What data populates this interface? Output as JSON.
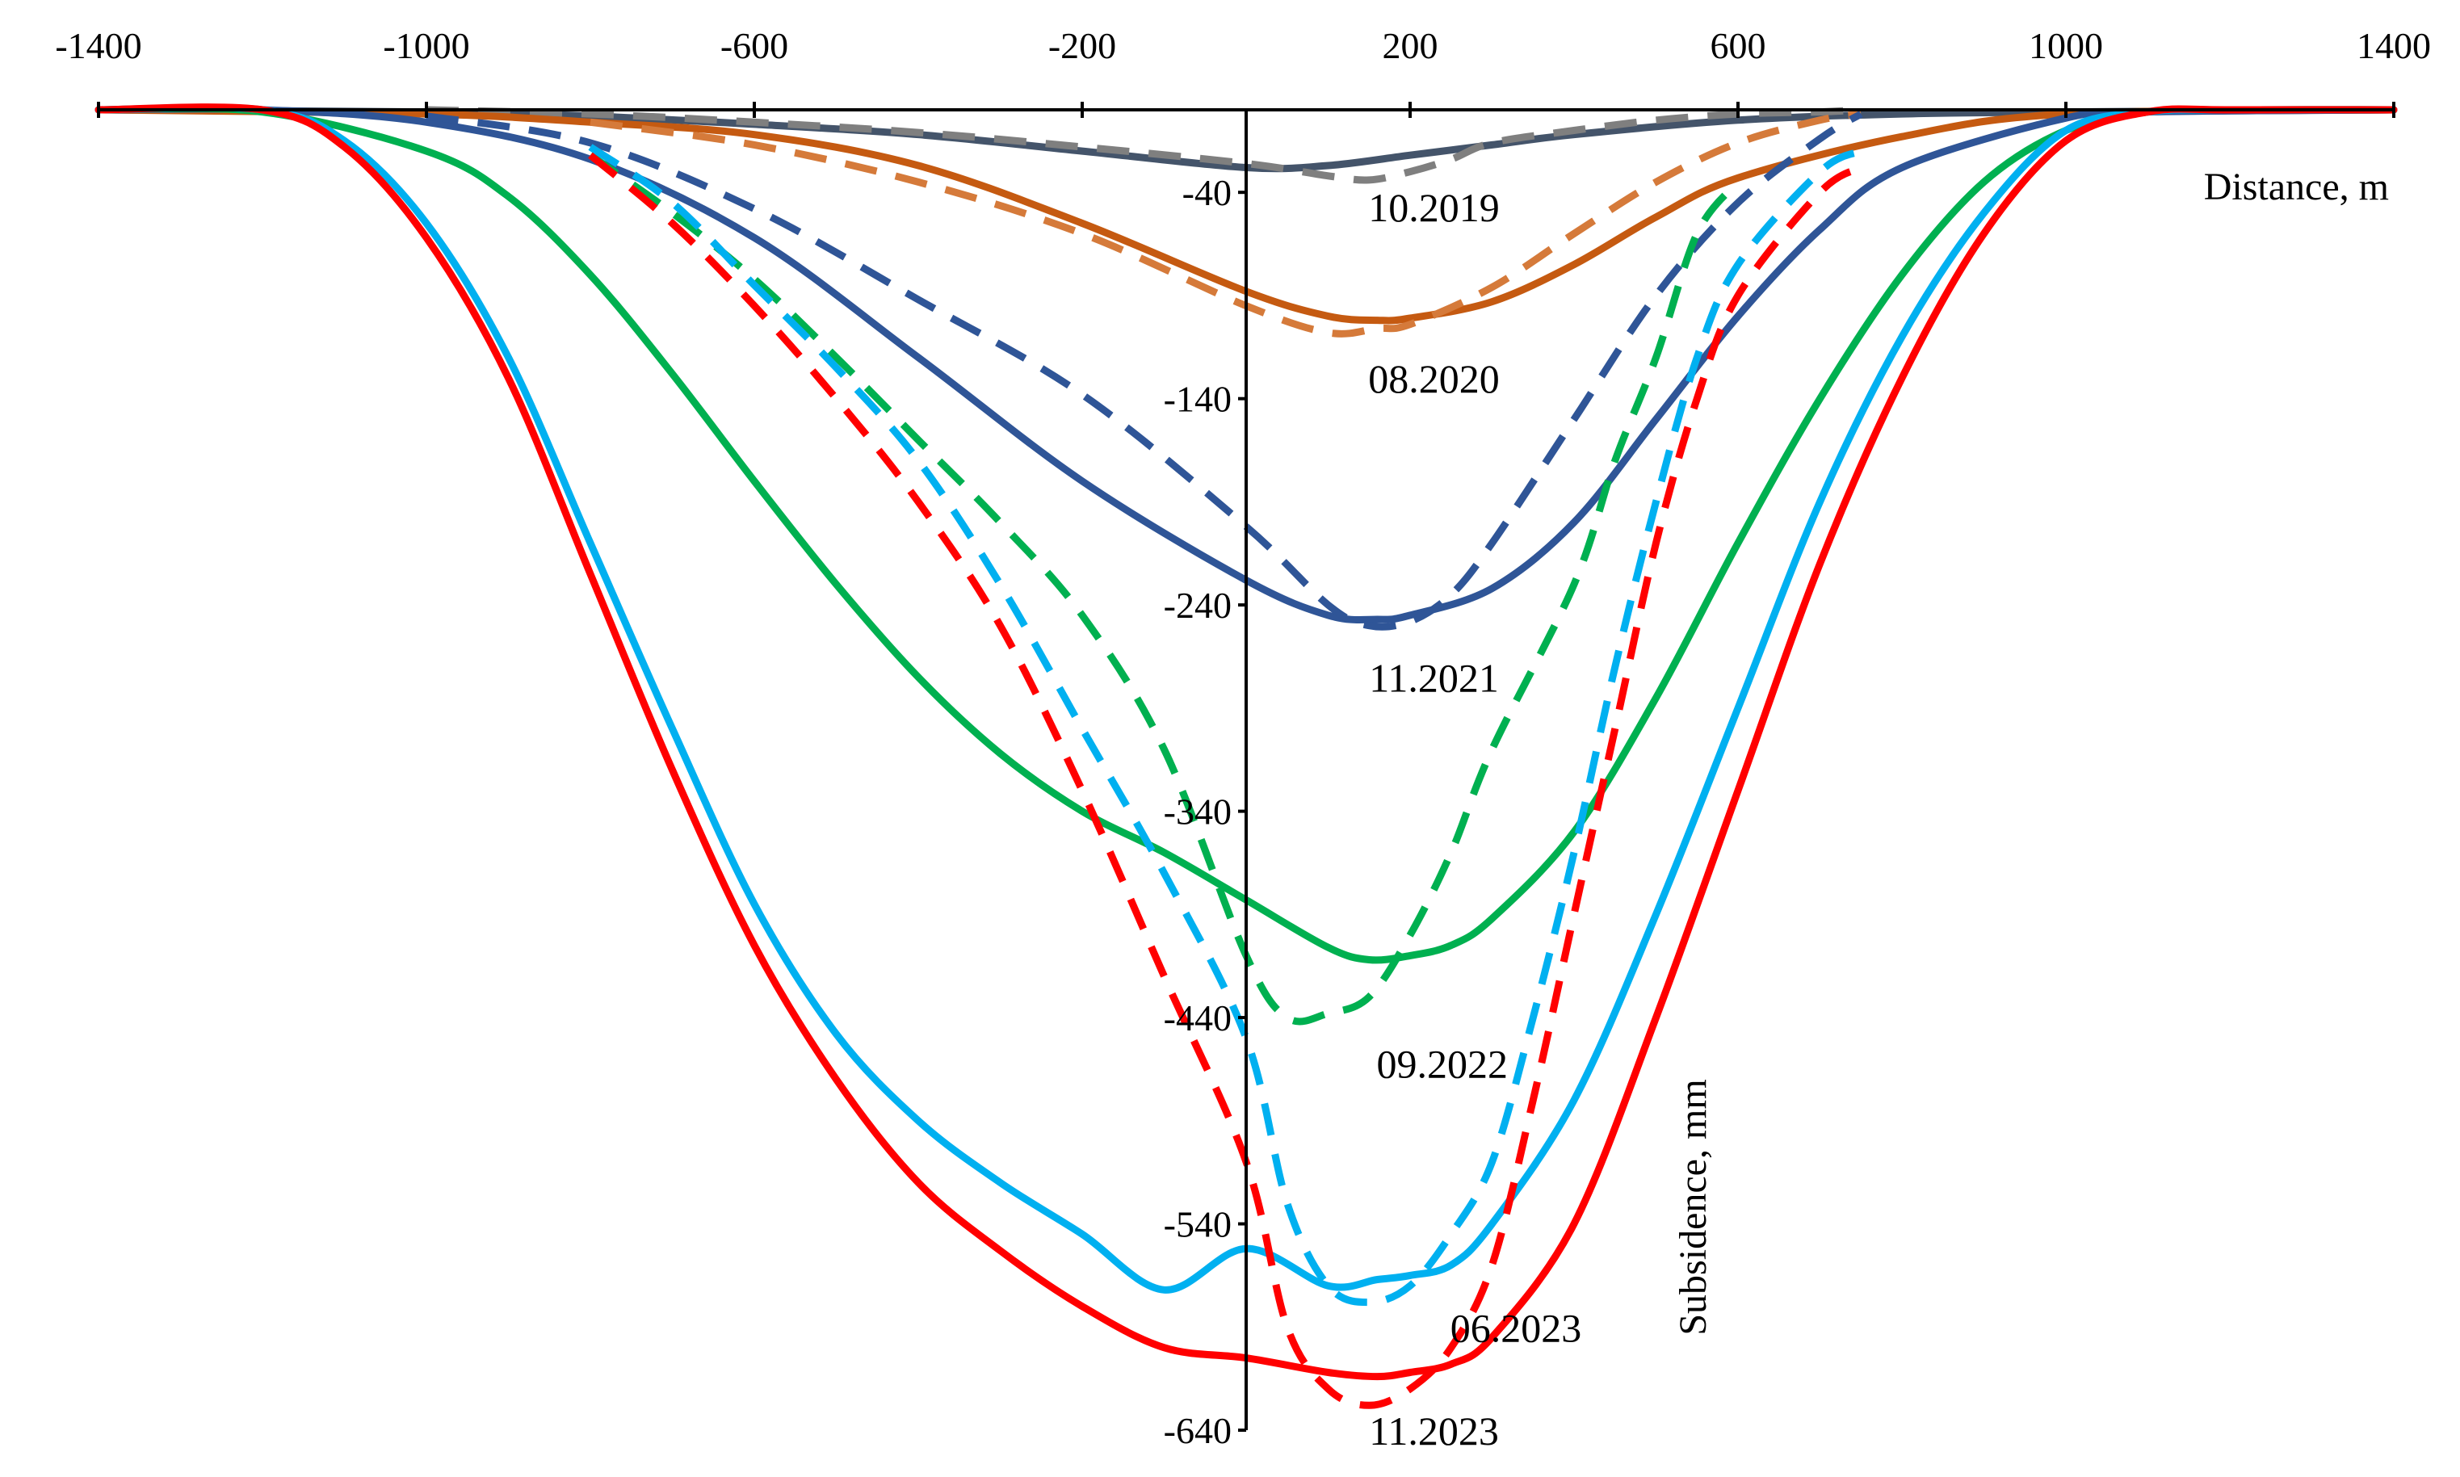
{
  "chart_data": {
    "type": "line",
    "title": "",
    "xlabel": "Distance, m",
    "ylabel": "Subsidence, mm",
    "xlim": [
      -1400,
      1400
    ],
    "ylim": [
      -640,
      0
    ],
    "x_ticks": [
      -1400,
      -1000,
      -600,
      -200,
      200,
      600,
      1000,
      1400
    ],
    "x_tick_labels": [
      "-1400",
      "-1000",
      "-600",
      "-200",
      "200",
      "600",
      "1000",
      "1400"
    ],
    "y_ticks": [
      -40,
      -140,
      -240,
      -340,
      -440,
      -540,
      -640
    ],
    "y_tick_labels": [
      "-40",
      "-140",
      "-240",
      "-340",
      "-440",
      "-540",
      "-640"
    ],
    "grid": false,
    "legend": "none",
    "colors": {
      "2019": "#44546A",
      "2019_dashed": "#7F7F7F",
      "2020": "#C55A11",
      "2020_dashed": "#D57A3A",
      "2021": "#2F5597",
      "2022": "#00B050",
      "2023_06": "#00B0F0",
      "2023_11": "#FF0000"
    },
    "annotations": [
      {
        "text": "10.2019",
        "x": 170,
        "y": -47
      },
      {
        "text": "08.2020",
        "x": 170,
        "y": -130
      },
      {
        "text": "11.2021",
        "x": 170,
        "y": -275
      },
      {
        "text": "09.2022",
        "x": 180,
        "y": -462
      },
      {
        "text": "06.2023",
        "x": 270,
        "y": -590
      },
      {
        "text": "11.2023",
        "x": 170,
        "y": -640
      }
    ],
    "series": [
      {
        "name": "10.2019",
        "style": "solid",
        "color": "#44546A",
        "x": [
          -1400,
          -1000,
          -800,
          -600,
          -400,
          -200,
          0,
          100,
          200,
          300,
          400,
          600,
          800,
          1000,
          1400
        ],
        "y": [
          0,
          -1,
          -3,
          -7,
          -12,
          -20,
          -28,
          -27,
          -22,
          -17,
          -12,
          -5,
          -2,
          -1,
          0
        ]
      },
      {
        "name": "10.2019 dashed",
        "style": "dashed",
        "color": "#7F7F7F",
        "x": [
          -1000,
          -800,
          -600,
          -400,
          -200,
          0,
          100,
          150,
          200,
          250,
          300,
          400,
          500,
          600,
          700,
          750
        ],
        "y": [
          0,
          -2,
          -6,
          -11,
          -18,
          -26,
          -32,
          -34,
          -30,
          -24,
          -16,
          -10,
          -5,
          -2,
          -1,
          0
        ]
      },
      {
        "name": "08.2020",
        "style": "solid",
        "color": "#C55A11",
        "x": [
          -1400,
          -1000,
          -800,
          -600,
          -400,
          -200,
          0,
          100,
          160,
          200,
          300,
          400,
          500,
          600,
          800,
          1000,
          1400
        ],
        "y": [
          0,
          -2,
          -6,
          -12,
          -27,
          -55,
          -88,
          -100,
          -102,
          -101,
          -93,
          -75,
          -52,
          -33,
          -13,
          -2,
          0
        ]
      },
      {
        "name": "08.2020 dashed",
        "style": "dashed",
        "color": "#D57A3A",
        "x": [
          -800,
          -600,
          -400,
          -200,
          0,
          100,
          160,
          200,
          300,
          400,
          500,
          600,
          700,
          750
        ],
        "y": [
          -6,
          -17,
          -35,
          -60,
          -95,
          -108,
          -106,
          -104,
          -86,
          -60,
          -35,
          -16,
          -5,
          -2
        ]
      },
      {
        "name": "11.2021",
        "style": "solid",
        "color": "#2F5597",
        "x": [
          -1400,
          -1200,
          -1000,
          -800,
          -600,
          -400,
          -200,
          0,
          100,
          160,
          200,
          300,
          400,
          500,
          600,
          700,
          800,
          1000,
          1100,
          1400
        ],
        "y": [
          0,
          0,
          -6,
          -24,
          -62,
          -120,
          -180,
          -228,
          -245,
          -247,
          -245,
          -232,
          -200,
          -150,
          -100,
          -58,
          -28,
          -4,
          -1,
          0
        ]
      },
      {
        "name": "11.2021 dashed",
        "style": "dashed",
        "color": "#2F5597",
        "x": [
          -1000,
          -800,
          -600,
          -400,
          -200,
          0,
          100,
          150,
          200,
          250,
          300,
          400,
          500,
          600,
          700,
          750
        ],
        "y": [
          -3,
          -16,
          -48,
          -92,
          -138,
          -202,
          -240,
          -250,
          -248,
          -235,
          -210,
          -150,
          -90,
          -45,
          -14,
          -2
        ]
      },
      {
        "name": "09.2022",
        "style": "solid",
        "color": "#00B050",
        "x": [
          -1400,
          -1200,
          -1000,
          -900,
          -800,
          -700,
          -600,
          -500,
          -400,
          -300,
          -200,
          -100,
          0,
          100,
          150,
          200,
          250,
          300,
          400,
          500,
          600,
          700,
          800,
          900,
          1000,
          1100,
          1200,
          1400
        ],
        "y": [
          0,
          -1,
          -20,
          -42,
          -80,
          -128,
          -180,
          -230,
          -275,
          -312,
          -340,
          -360,
          -383,
          -406,
          -412,
          -410,
          -405,
          -392,
          -350,
          -285,
          -210,
          -140,
          -80,
          -35,
          -10,
          -1,
          0,
          0
        ]
      },
      {
        "name": "09.2022 dashed",
        "style": "dashed",
        "color": "#00B050",
        "x": [
          -800,
          -700,
          -600,
          -500,
          -400,
          -300,
          -200,
          -100,
          0,
          50,
          100,
          150,
          200,
          250,
          300,
          400,
          450,
          500,
          550,
          600
        ],
        "y": [
          -22,
          -50,
          -82,
          -120,
          -160,
          -200,
          -245,
          -310,
          -410,
          -440,
          -438,
          -430,
          -400,
          -360,
          -310,
          -230,
          -170,
          -120,
          -60,
          -35
        ]
      },
      {
        "name": "06.2023",
        "style": "solid",
        "color": "#00B0F0",
        "x": [
          -1400,
          -1200,
          -1100,
          -1000,
          -900,
          -800,
          -700,
          -600,
          -500,
          -400,
          -300,
          -200,
          -100,
          0,
          100,
          160,
          200,
          250,
          300,
          400,
          500,
          600,
          700,
          800,
          900,
          1000,
          1100,
          1200,
          1400
        ],
        "y": [
          0,
          0,
          -15,
          -55,
          -120,
          -210,
          -300,
          -385,
          -448,
          -490,
          -520,
          -545,
          -572,
          -552,
          -570,
          -567,
          -565,
          -560,
          -540,
          -480,
          -390,
          -290,
          -190,
          -110,
          -50,
          -10,
          -1,
          0,
          0
        ]
      },
      {
        "name": "06.2023 dashed",
        "style": "dashed",
        "color": "#00B0F0",
        "x": [
          -800,
          -700,
          -600,
          -500,
          -400,
          -300,
          -200,
          -100,
          0,
          50,
          100,
          150,
          200,
          250,
          300,
          350,
          400,
          450,
          500,
          550,
          600,
          700,
          750
        ],
        "y": [
          -18,
          -45,
          -85,
          -125,
          -170,
          -230,
          -300,
          -370,
          -450,
          -530,
          -570,
          -578,
          -570,
          -545,
          -510,
          -440,
          -360,
          -270,
          -190,
          -120,
          -75,
          -30,
          -20
        ]
      },
      {
        "name": "11.2023",
        "style": "solid",
        "color": "#FF0000",
        "x": [
          -1400,
          -1200,
          -1100,
          -1000,
          -900,
          -800,
          -700,
          -600,
          -500,
          -400,
          -300,
          -200,
          -100,
          0,
          100,
          160,
          200,
          250,
          300,
          400,
          500,
          600,
          700,
          800,
          900,
          1000,
          1100,
          1200,
          1400
        ],
        "y": [
          0,
          0,
          -18,
          -62,
          -130,
          -225,
          -320,
          -405,
          -470,
          -520,
          -553,
          -580,
          -600,
          -605,
          -612,
          -614,
          -612,
          -608,
          -595,
          -540,
          -440,
          -330,
          -220,
          -130,
          -60,
          -15,
          -1,
          0,
          0
        ]
      },
      {
        "name": "11.2023 dashed",
        "style": "dashed",
        "color": "#FF0000",
        "x": [
          -800,
          -700,
          -600,
          -500,
          -400,
          -300,
          -200,
          -100,
          0,
          50,
          100,
          150,
          200,
          250,
          300,
          350,
          400,
          450,
          500,
          550,
          600,
          700,
          750
        ],
        "y": [
          -22,
          -55,
          -95,
          -140,
          -190,
          -250,
          -330,
          -420,
          -510,
          -590,
          -620,
          -628,
          -620,
          -600,
          -560,
          -480,
          -390,
          -300,
          -210,
          -140,
          -90,
          -40,
          -28
        ]
      }
    ]
  }
}
